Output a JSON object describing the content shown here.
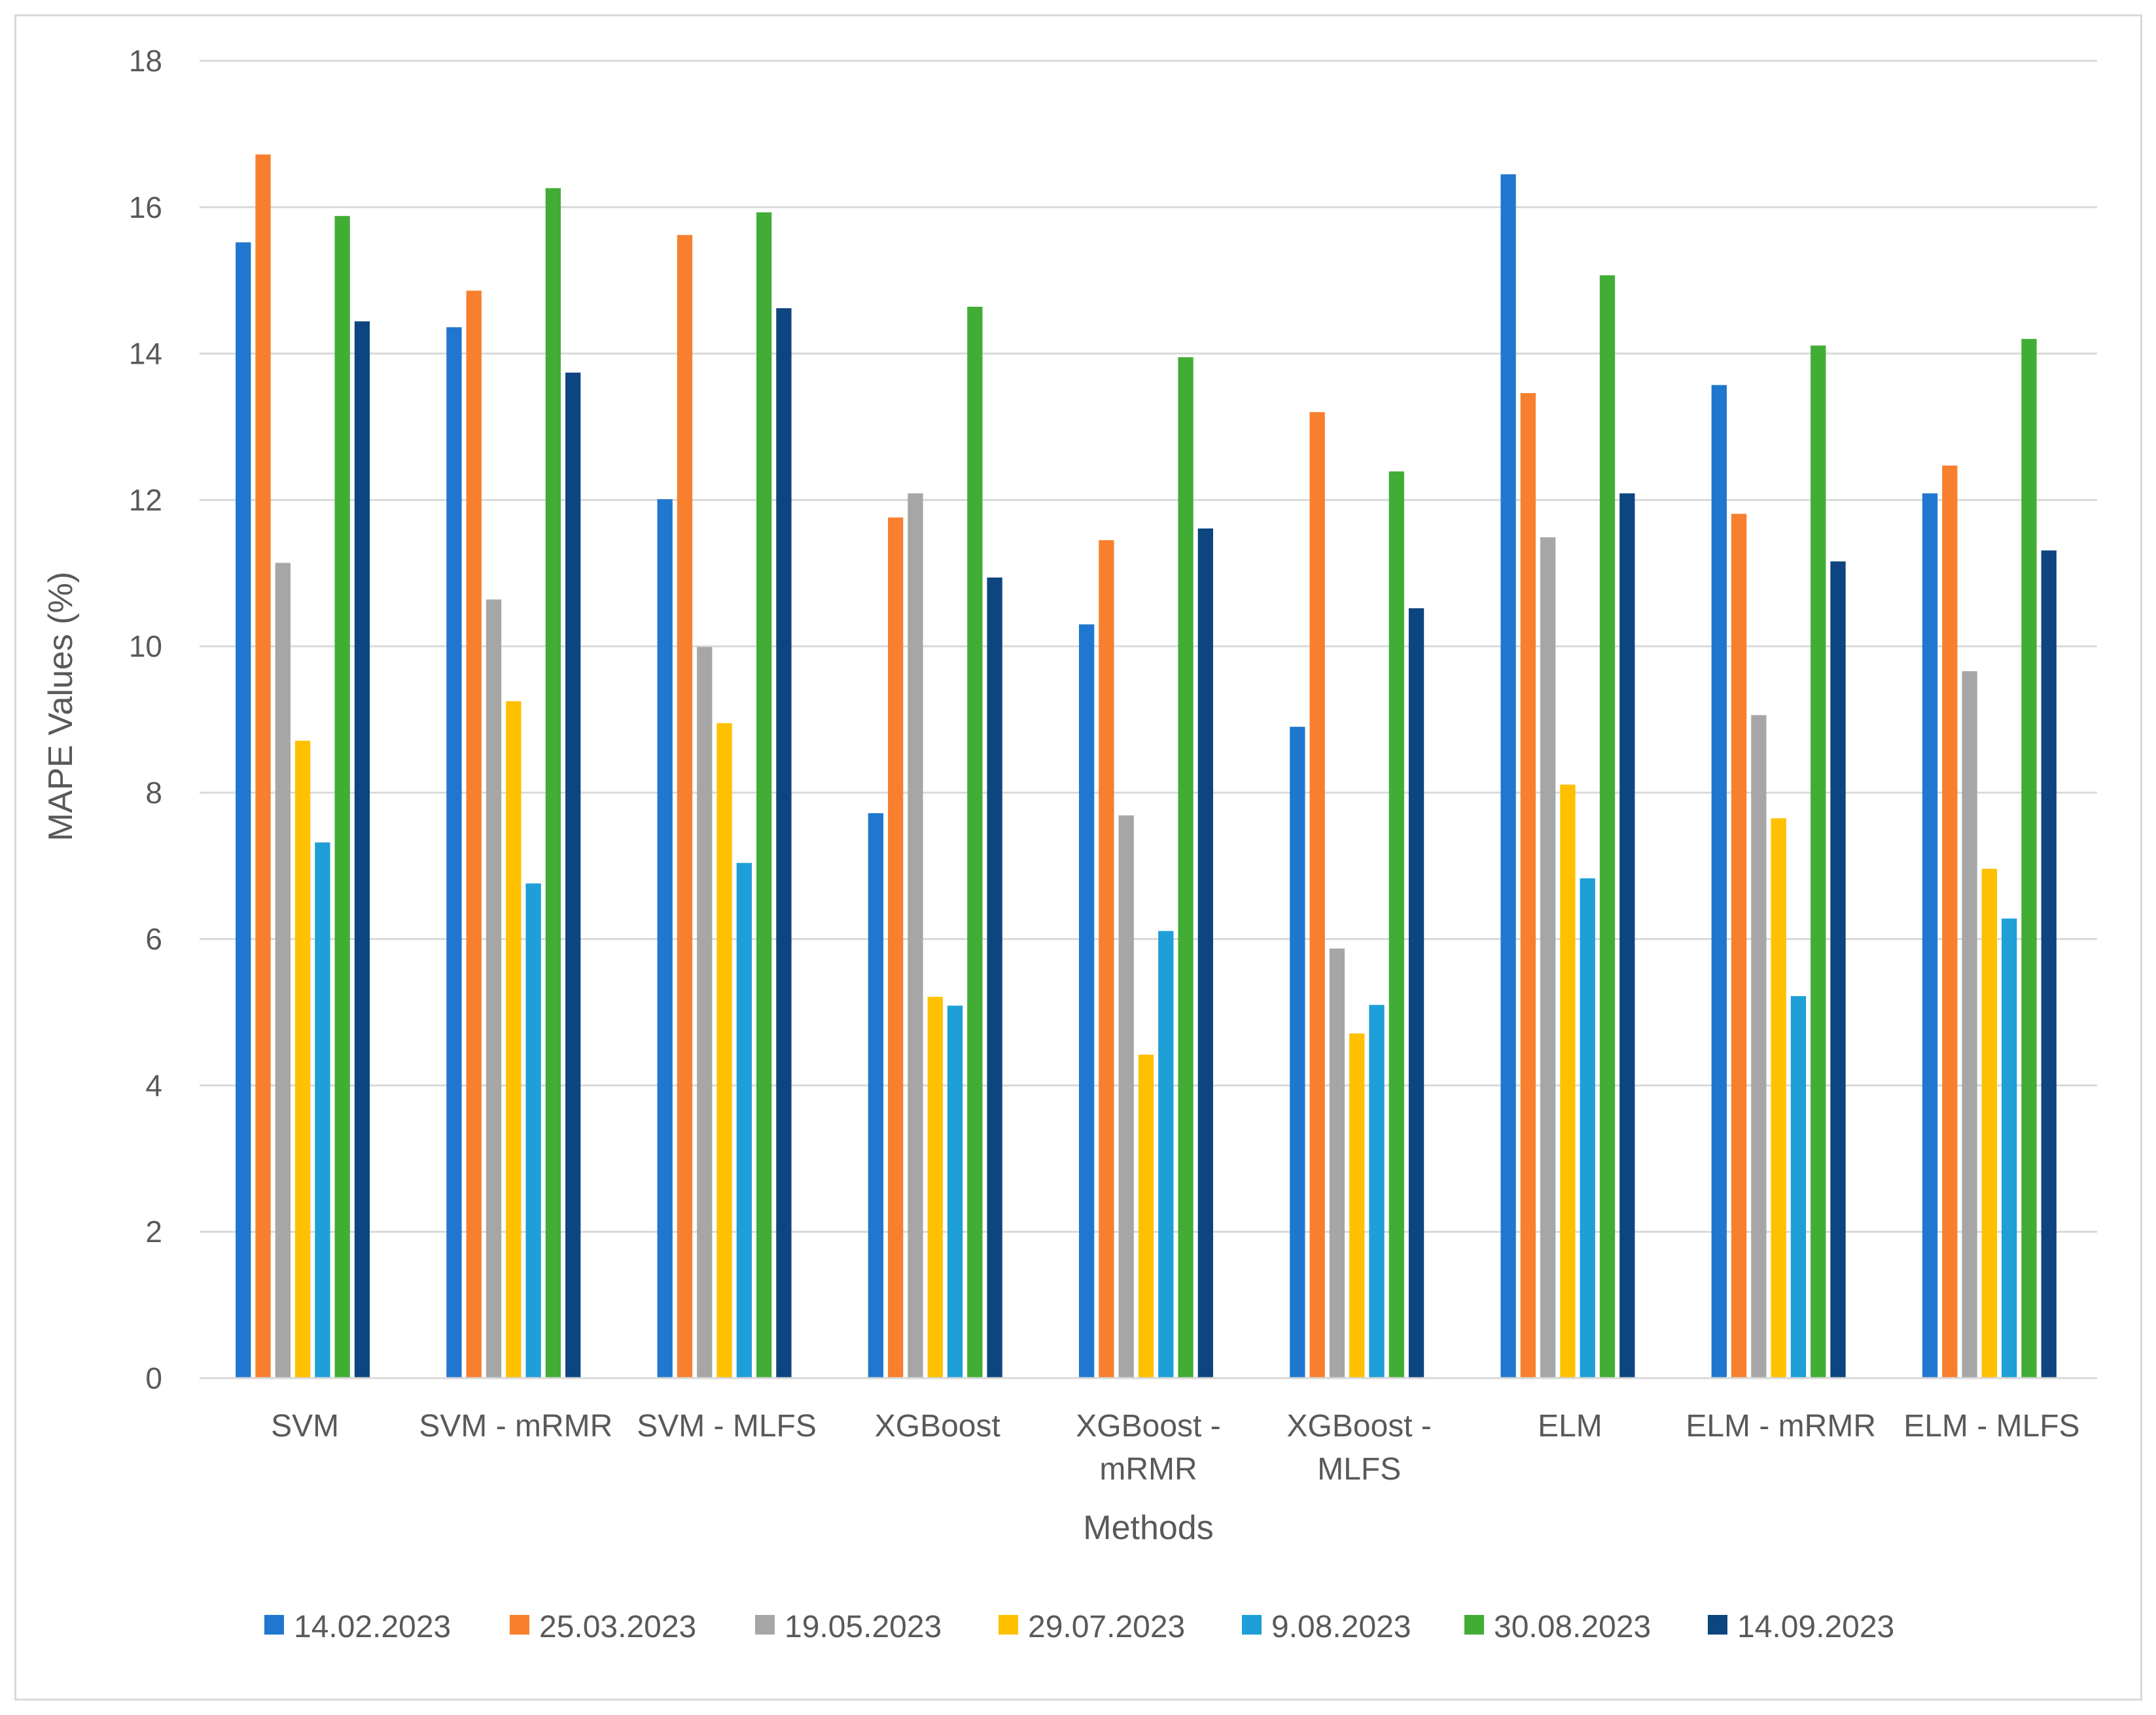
{
  "chart_data": {
    "type": "bar",
    "title": "",
    "xlabel": "Methods",
    "ylabel": "MAPE Values (%)",
    "ylim": [
      0,
      18
    ],
    "ytick_step": 2,
    "grid": true,
    "legend_position": "bottom",
    "categories": [
      [
        "SVM"
      ],
      [
        "SVM - mRMR"
      ],
      [
        "SVM - MLFS"
      ],
      [
        "XGBoost"
      ],
      [
        "XGBoost -",
        "mRMR"
      ],
      [
        "XGBoost -",
        "MLFS"
      ],
      [
        "ELM"
      ],
      [
        "ELM - mRMR"
      ],
      [
        "ELM - MLFS"
      ]
    ],
    "series": [
      {
        "name": "14.02.2023",
        "color": "#1f77d0",
        "values": [
          15.52,
          14.36,
          12.01,
          7.72,
          10.3,
          8.9,
          16.45,
          13.57,
          12.09
        ]
      },
      {
        "name": "25.03.2023",
        "color": "#f77f2e",
        "values": [
          16.72,
          14.86,
          15.62,
          11.76,
          11.45,
          13.2,
          13.46,
          11.81,
          12.47
        ]
      },
      {
        "name": "19.05.2023",
        "color": "#a6a6a6",
        "values": [
          11.14,
          10.64,
          9.99,
          12.09,
          7.69,
          5.87,
          11.49,
          9.06,
          9.66
        ]
      },
      {
        "name": "29.07.2023",
        "color": "#ffc000",
        "values": [
          8.71,
          9.25,
          8.95,
          5.21,
          4.42,
          4.71,
          8.11,
          7.65,
          6.96
        ]
      },
      {
        "name": "9.08.2023",
        "color": "#1e9fd8",
        "values": [
          7.32,
          6.76,
          7.04,
          5.09,
          6.11,
          5.1,
          6.83,
          5.22,
          6.28
        ]
      },
      {
        "name": "30.08.2023",
        "color": "#41ad35",
        "values": [
          15.88,
          16.26,
          15.93,
          14.64,
          13.95,
          12.39,
          15.07,
          14.11,
          14.2
        ]
      },
      {
        "name": "14.09.2023",
        "color": "#0d4580",
        "values": [
          14.44,
          13.74,
          14.62,
          10.94,
          11.61,
          10.52,
          12.09,
          11.16,
          11.31
        ]
      }
    ]
  }
}
